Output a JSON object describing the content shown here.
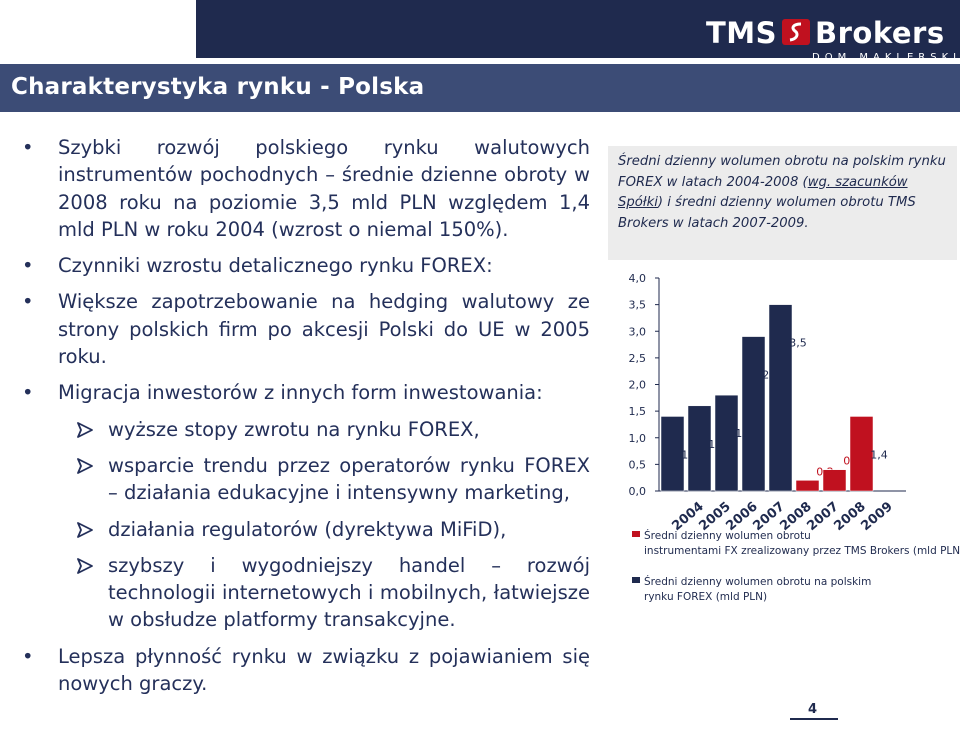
{
  "title": "Charakterystyka rynku - Polska",
  "logo": {
    "brand": "TMS Brokers",
    "subtitle": "DOM MAKLERSKI"
  },
  "bullets": {
    "b1": "Szybki rozwój polskiego rynku walutowych instrumentów pochodnych – średnie dzienne obroty w 2008 roku na poziomie 3,5 mld PLN względem 1,4 mld PLN w roku 2004 (wzrost o niemal 150%).",
    "b2": "Czynniki wzrostu detalicznego rynku FOREX:",
    "b3": "Większe zapotrzebowanie na hedging walutowy ze strony polskich firm po akcesji Polski do UE w 2005 roku.",
    "b4": "Migracja inwestorów z innych form inwestowania:",
    "b4_sub": [
      "wyższe stopy zwrotu na rynku FOREX,",
      "wsparcie trendu przez operatorów rynku FOREX – działania edukacyjne i intensywny marketing,",
      "działania regulatorów (dyrektywa MiFiD),",
      "szybszy i wygodniejszy handel – rozwój technologii internetowych i mobilnych, łatwiejsze w obsłudze platformy transakcyjne."
    ],
    "b5": "Lepsza płynność rynku w związku z pojawianiem się nowych graczy."
  },
  "caption": {
    "part1": "Średni dzienny wolumen obrotu na polskim rynku FOREX w latach 2004-2008 (",
    "link": "wg. szacunków Spółki",
    "part2": ") i średni dzienny wolumen obrotu TMS Brokers w latach 2007-2009."
  },
  "page_number": "4",
  "colors": {
    "navy": "#1f2a4e",
    "red": "#c0111f",
    "title_bar": "#3c4c76"
  },
  "chart_data": {
    "type": "bar",
    "yticks": [
      "4,0",
      "3,5",
      "3,0",
      "2,5",
      "2,0",
      "1,5",
      "1,0",
      "0,5",
      "0,0"
    ],
    "ylim": [
      0,
      4
    ],
    "series": [
      {
        "name": "Średni dzienny wolumen obrotu na polskim rynku FOREX (mld PLN)",
        "color": "#1f2a4e",
        "categories": [
          "2004",
          "2005",
          "2006",
          "2007",
          "2008"
        ],
        "values": [
          1.4,
          1.6,
          1.8,
          2.9,
          3.5
        ],
        "labels": [
          "1,4",
          "1,6",
          "1,8",
          "2,9",
          "3,5"
        ]
      },
      {
        "name": "Średni dzienny wolumen obrotu instrumentami FX zrealizowany przez TMS Brokers (mld PLN)",
        "color": "#c0111f",
        "categories": [
          "2007",
          "2008",
          "2009"
        ],
        "values": [
          0.2,
          0.4,
          1.4
        ],
        "labels": [
          "0,2",
          "0,4",
          "1,4"
        ]
      }
    ],
    "legend_position": "bottom"
  }
}
